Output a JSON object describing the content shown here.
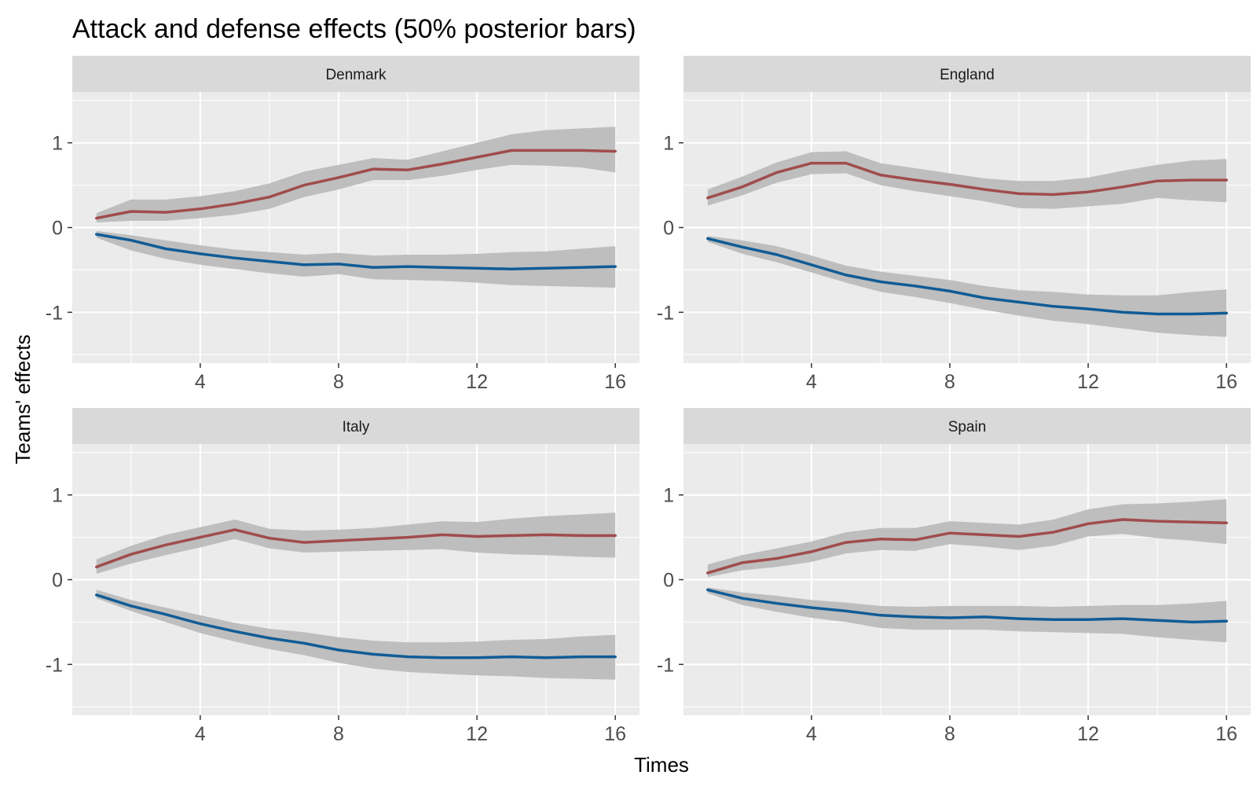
{
  "chart_data": {
    "type": "line",
    "title": "Attack and defense effects (50% posterior bars)",
    "xlabel": "Times",
    "ylabel": "Teams' effects",
    "xlim": [
      0.3,
      16.7
    ],
    "ylim": [
      -1.6,
      1.6
    ],
    "x_ticks": [
      4,
      8,
      12,
      16
    ],
    "x_tick_labels": [
      "4",
      "8",
      "12",
      "16"
    ],
    "y_ticks": [
      1,
      0,
      -1
    ],
    "y_tick_labels": [
      "1",
      "0",
      "-1"
    ],
    "grid": true,
    "legend": "none",
    "x": [
      1,
      2,
      3,
      4,
      5,
      6,
      7,
      8,
      9,
      10,
      11,
      12,
      13,
      14,
      15,
      16
    ],
    "colors": {
      "attack": "#a04c4c",
      "defense": "#105c96",
      "band": "#bebebe",
      "panel": "#ebebeb",
      "strip": "#d9d9d9"
    },
    "panels": [
      {
        "facet": "Denmark",
        "series": [
          {
            "role": "attack",
            "values": [
              0.11,
              0.19,
              0.18,
              0.22,
              0.28,
              0.36,
              0.5,
              0.59,
              0.69,
              0.68,
              0.75,
              0.83,
              0.91,
              0.91,
              0.91,
              0.9
            ],
            "lower": [
              0.06,
              0.08,
              0.08,
              0.11,
              0.15,
              0.22,
              0.36,
              0.45,
              0.56,
              0.56,
              0.61,
              0.68,
              0.74,
              0.73,
              0.71,
              0.65
            ],
            "upper": [
              0.17,
              0.33,
              0.33,
              0.37,
              0.43,
              0.52,
              0.66,
              0.74,
              0.82,
              0.8,
              0.9,
              1.0,
              1.1,
              1.15,
              1.17,
              1.19
            ]
          },
          {
            "role": "defense",
            "values": [
              -0.08,
              -0.15,
              -0.25,
              -0.31,
              -0.36,
              -0.4,
              -0.44,
              -0.43,
              -0.47,
              -0.46,
              -0.47,
              -0.48,
              -0.49,
              -0.48,
              -0.47,
              -0.46
            ],
            "lower": [
              -0.12,
              -0.27,
              -0.37,
              -0.44,
              -0.49,
              -0.54,
              -0.58,
              -0.55,
              -0.61,
              -0.62,
              -0.63,
              -0.65,
              -0.68,
              -0.69,
              -0.7,
              -0.71
            ],
            "upper": [
              -0.04,
              -0.09,
              -0.15,
              -0.21,
              -0.26,
              -0.29,
              -0.32,
              -0.3,
              -0.33,
              -0.32,
              -0.32,
              -0.31,
              -0.29,
              -0.28,
              -0.25,
              -0.22
            ]
          }
        ]
      },
      {
        "facet": "England",
        "series": [
          {
            "role": "attack",
            "values": [
              0.35,
              0.48,
              0.65,
              0.76,
              0.76,
              0.62,
              0.56,
              0.51,
              0.45,
              0.4,
              0.39,
              0.42,
              0.48,
              0.55,
              0.56,
              0.56
            ],
            "lower": [
              0.26,
              0.38,
              0.53,
              0.63,
              0.64,
              0.5,
              0.43,
              0.37,
              0.31,
              0.23,
              0.22,
              0.25,
              0.28,
              0.35,
              0.32,
              0.3
            ],
            "upper": [
              0.45,
              0.6,
              0.77,
              0.89,
              0.9,
              0.76,
              0.7,
              0.64,
              0.58,
              0.55,
              0.55,
              0.59,
              0.67,
              0.74,
              0.79,
              0.81
            ]
          },
          {
            "role": "defense",
            "values": [
              -0.13,
              -0.23,
              -0.32,
              -0.44,
              -0.56,
              -0.64,
              -0.69,
              -0.75,
              -0.83,
              -0.88,
              -0.93,
              -0.96,
              -1.0,
              -1.02,
              -1.02,
              -1.01
            ],
            "lower": [
              -0.17,
              -0.31,
              -0.41,
              -0.53,
              -0.65,
              -0.76,
              -0.82,
              -0.89,
              -0.97,
              -1.04,
              -1.1,
              -1.14,
              -1.19,
              -1.24,
              -1.27,
              -1.29
            ],
            "upper": [
              -0.1,
              -0.15,
              -0.22,
              -0.33,
              -0.45,
              -0.52,
              -0.57,
              -0.62,
              -0.69,
              -0.74,
              -0.76,
              -0.79,
              -0.8,
              -0.8,
              -0.76,
              -0.73
            ]
          }
        ]
      },
      {
        "facet": "Italy",
        "series": [
          {
            "role": "attack",
            "values": [
              0.15,
              0.3,
              0.41,
              0.5,
              0.59,
              0.49,
              0.44,
              0.46,
              0.48,
              0.5,
              0.53,
              0.51,
              0.52,
              0.53,
              0.52,
              0.52
            ],
            "lower": [
              0.07,
              0.19,
              0.29,
              0.38,
              0.48,
              0.37,
              0.32,
              0.33,
              0.34,
              0.35,
              0.36,
              0.32,
              0.3,
              0.29,
              0.27,
              0.26
            ],
            "upper": [
              0.24,
              0.4,
              0.53,
              0.62,
              0.71,
              0.6,
              0.58,
              0.59,
              0.61,
              0.65,
              0.69,
              0.68,
              0.72,
              0.75,
              0.77,
              0.79
            ]
          },
          {
            "role": "defense",
            "values": [
              -0.18,
              -0.31,
              -0.41,
              -0.52,
              -0.61,
              -0.69,
              -0.75,
              -0.83,
              -0.88,
              -0.91,
              -0.92,
              -0.92,
              -0.91,
              -0.92,
              -0.91,
              -0.91
            ],
            "lower": [
              -0.22,
              -0.37,
              -0.5,
              -0.63,
              -0.73,
              -0.82,
              -0.89,
              -0.98,
              -1.05,
              -1.09,
              -1.11,
              -1.13,
              -1.14,
              -1.16,
              -1.17,
              -1.18
            ],
            "upper": [
              -0.12,
              -0.24,
              -0.33,
              -0.42,
              -0.51,
              -0.58,
              -0.62,
              -0.68,
              -0.72,
              -0.74,
              -0.74,
              -0.73,
              -0.71,
              -0.7,
              -0.67,
              -0.65
            ]
          }
        ]
      },
      {
        "facet": "Spain",
        "series": [
          {
            "role": "attack",
            "values": [
              0.08,
              0.2,
              0.25,
              0.33,
              0.44,
              0.48,
              0.47,
              0.55,
              0.53,
              0.51,
              0.56,
              0.66,
              0.71,
              0.69,
              0.68,
              0.67
            ],
            "lower": [
              0.03,
              0.11,
              0.15,
              0.21,
              0.31,
              0.35,
              0.34,
              0.42,
              0.39,
              0.35,
              0.4,
              0.51,
              0.54,
              0.49,
              0.46,
              0.42
            ],
            "upper": [
              0.18,
              0.29,
              0.37,
              0.45,
              0.56,
              0.61,
              0.61,
              0.69,
              0.67,
              0.65,
              0.71,
              0.83,
              0.89,
              0.9,
              0.92,
              0.95
            ]
          },
          {
            "role": "defense",
            "values": [
              -0.12,
              -0.22,
              -0.28,
              -0.33,
              -0.37,
              -0.42,
              -0.44,
              -0.45,
              -0.44,
              -0.46,
              -0.47,
              -0.47,
              -0.46,
              -0.48,
              -0.5,
              -0.49
            ],
            "lower": [
              -0.16,
              -0.3,
              -0.38,
              -0.45,
              -0.5,
              -0.57,
              -0.59,
              -0.59,
              -0.59,
              -0.61,
              -0.62,
              -0.63,
              -0.64,
              -0.68,
              -0.71,
              -0.74
            ],
            "upper": [
              -0.09,
              -0.15,
              -0.19,
              -0.24,
              -0.27,
              -0.31,
              -0.32,
              -0.31,
              -0.31,
              -0.31,
              -0.32,
              -0.31,
              -0.3,
              -0.3,
              -0.28,
              -0.25
            ]
          }
        ]
      }
    ]
  }
}
